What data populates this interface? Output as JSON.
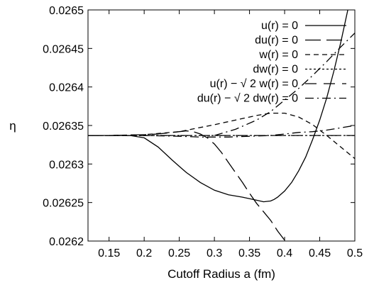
{
  "chart_data": {
    "type": "line",
    "title": "",
    "xlabel": "Cutoff Radius a (fm)",
    "ylabel": "η",
    "xlim": [
      0.12,
      0.5
    ],
    "ylim": [
      0.0262,
      0.0265
    ],
    "x_ticks": [
      0.15,
      0.2,
      0.25,
      0.3,
      0.35,
      0.4,
      0.45,
      0.5
    ],
    "x_tick_labels": [
      "0.15",
      "0.2",
      "0.25",
      "0.3",
      "0.35",
      "0.4",
      "0.45",
      "0.5"
    ],
    "y_ticks": [
      0.0262,
      0.02625,
      0.0263,
      0.02635,
      0.0264,
      0.02645,
      0.0265
    ],
    "y_tick_labels": [
      "0.0262",
      "0.02625",
      "0.0263",
      "0.02635",
      "0.0264",
      "0.02645",
      "0.0265"
    ],
    "grid": false,
    "legend_position": "top-right",
    "series": [
      {
        "name": "u(r) = 0",
        "dash": "solid",
        "x": [
          0.12,
          0.15,
          0.18,
          0.2,
          0.22,
          0.24,
          0.26,
          0.28,
          0.3,
          0.32,
          0.34,
          0.36,
          0.37,
          0.38,
          0.385,
          0.39,
          0.4,
          0.41,
          0.42,
          0.43,
          0.44,
          0.45,
          0.46,
          0.47,
          0.48,
          0.49,
          0.5
        ],
        "y": [
          0.026337,
          0.026337,
          0.026337,
          0.026334,
          0.026322,
          0.026305,
          0.026289,
          0.026276,
          0.026266,
          0.02626,
          0.026257,
          0.026253,
          0.026251,
          0.026252,
          0.026254,
          0.026257,
          0.026265,
          0.026276,
          0.026291,
          0.026309,
          0.026332,
          0.026357,
          0.026386,
          0.02642,
          0.026458,
          0.0265,
          0.026548
        ]
      },
      {
        "name": "du(r) = 0",
        "dash": "long",
        "x": [
          0.12,
          0.15,
          0.2,
          0.22,
          0.24,
          0.25,
          0.26,
          0.27,
          0.28,
          0.29,
          0.3,
          0.31,
          0.32,
          0.34,
          0.35,
          0.36,
          0.38,
          0.39,
          0.4,
          0.41,
          0.415
        ],
        "y": [
          0.026337,
          0.026337,
          0.026338,
          0.026339,
          0.026341,
          0.026342,
          0.026343,
          0.026342,
          0.026339,
          0.026334,
          0.026326,
          0.026315,
          0.026302,
          0.026276,
          0.026262,
          0.026249,
          0.026227,
          0.026213,
          0.026201,
          0.026188,
          0.02618
        ]
      },
      {
        "name": "w(r) = 0",
        "dash": "medium",
        "x": [
          0.12,
          0.15,
          0.2,
          0.25,
          0.3,
          0.33,
          0.36,
          0.38,
          0.4,
          0.42,
          0.44,
          0.46,
          0.48,
          0.5
        ],
        "y": [
          0.026337,
          0.026337,
          0.026338,
          0.026342,
          0.026351,
          0.026357,
          0.026363,
          0.026366,
          0.026366,
          0.026361,
          0.026351,
          0.026337,
          0.026322,
          0.026307
        ]
      },
      {
        "name": "dw(r) = 0",
        "dash": "short",
        "x": [
          0.12,
          0.15,
          0.2,
          0.25,
          0.3,
          0.35,
          0.4,
          0.45,
          0.5
        ],
        "y": [
          0.026337,
          0.026337,
          0.026337,
          0.026337,
          0.026337,
          0.026337,
          0.026337,
          0.026337,
          0.026337
        ]
      },
      {
        "name": "u(r) − √ 2 w(r) = 0",
        "dash": "long-gap",
        "x": [
          0.12,
          0.15,
          0.2,
          0.25,
          0.3,
          0.35,
          0.4,
          0.45,
          0.5
        ],
        "y": [
          0.026337,
          0.026337,
          0.026337,
          0.026337,
          0.026337,
          0.026337,
          0.026337,
          0.026337,
          0.026337
        ]
      },
      {
        "name": "du(r) − √ 2 dw(r) = 0",
        "dash": "dash-dot",
        "x": [
          0.12,
          0.15,
          0.2,
          0.25,
          0.28,
          0.3,
          0.32,
          0.35,
          0.38,
          0.4,
          0.42,
          0.44,
          0.46,
          0.48,
          0.5
        ],
        "y": [
          0.026337,
          0.026337,
          0.026337,
          0.026336,
          0.026335,
          0.026335,
          0.026335,
          0.026336,
          0.026337,
          0.026339,
          0.026341,
          0.026342,
          0.026344,
          0.026347,
          0.02635
        ]
      }
    ],
    "extra_curves": [
      {
        "note": "upper dash-dot branch rising toward the right edge",
        "dash": "dash-dot",
        "x": [
          0.3,
          0.33,
          0.36,
          0.38,
          0.4,
          0.42,
          0.44,
          0.46,
          0.48,
          0.5
        ],
        "y": [
          0.026337,
          0.026345,
          0.026357,
          0.026368,
          0.026383,
          0.026398,
          0.026415,
          0.026433,
          0.026452,
          0.02647
        ]
      }
    ]
  }
}
